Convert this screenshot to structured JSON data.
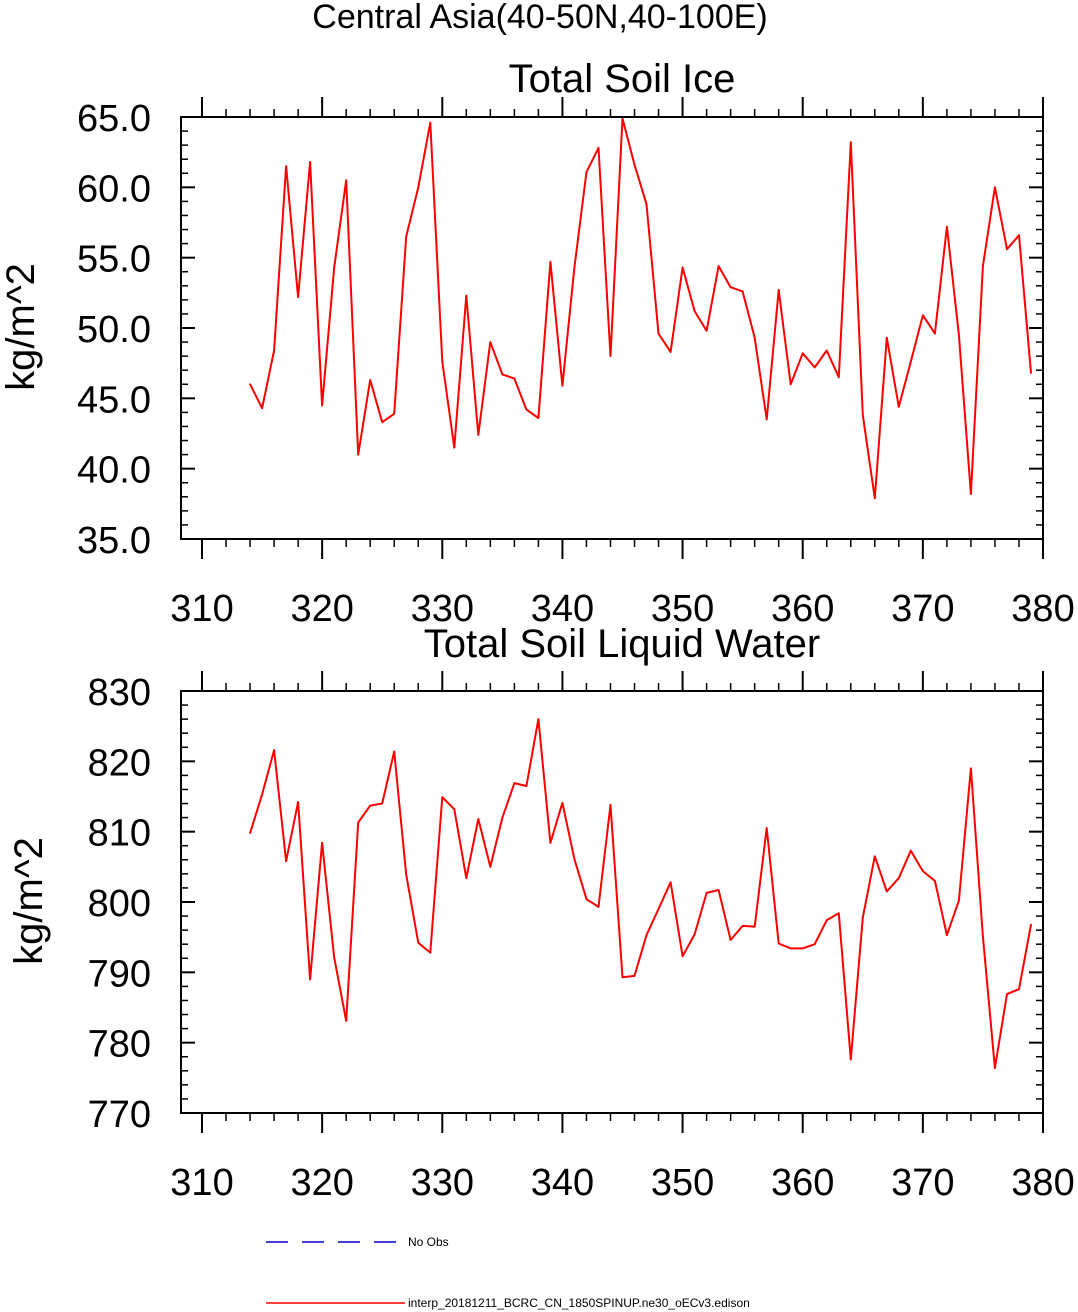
{
  "figure_title": "Central Asia(40-50N,40-100E)",
  "legend": [
    {
      "label": "No Obs",
      "color": "#0000cc",
      "style": "dashed"
    },
    {
      "label": "interp_20181211_BCRC_CN_1850SPINUP.ne30_oECv3.edison",
      "color": "#ff0000",
      "style": "solid"
    }
  ],
  "chart_data": [
    {
      "type": "line",
      "title": "Total Soil Ice",
      "xlabel": "",
      "ylabel": "kg/m^2",
      "xlim": [
        310,
        380
      ],
      "ylim": [
        35,
        65
      ],
      "xticks": [
        310,
        320,
        330,
        340,
        350,
        360,
        370,
        380
      ],
      "xtick_labels": [
        "310",
        "320",
        "330",
        "340",
        "350",
        "360",
        "370",
        "380"
      ],
      "yticks": [
        35,
        40,
        45,
        50,
        55,
        60,
        65
      ],
      "ytick_labels": [
        "35.0",
        "40.0",
        "45.0",
        "50.0",
        "55.0",
        "60.0",
        "65.0"
      ],
      "yminor_step": 1,
      "xminor_step": 2,
      "grid": false,
      "series": [
        {
          "color": "#ff0000",
          "x": [
            314,
            315,
            316,
            317,
            318,
            319,
            320,
            321,
            322,
            323,
            324,
            325,
            326,
            327,
            328,
            329,
            330,
            331,
            332,
            333,
            334,
            335,
            336,
            337,
            338,
            339,
            340,
            341,
            342,
            343,
            344,
            345,
            346,
            347,
            348,
            349,
            350,
            351,
            352,
            353,
            354,
            355,
            356,
            357,
            358,
            359,
            360,
            361,
            362,
            363,
            364,
            365,
            366,
            367,
            368,
            369,
            370,
            371,
            372,
            373,
            374,
            375,
            376,
            377,
            378,
            379
          ],
          "values": [
            46.0,
            44.3,
            48.4,
            61.5,
            52.2,
            61.8,
            44.5,
            54.3,
            60.5,
            41.0,
            46.3,
            43.3,
            43.9,
            56.5,
            60.0,
            64.6,
            47.6,
            41.5,
            52.3,
            42.4,
            49.0,
            46.7,
            46.4,
            44.2,
            43.6,
            54.7,
            45.9,
            54.3,
            61.1,
            62.8,
            48.0,
            64.9,
            61.6,
            58.8,
            49.6,
            48.3,
            54.3,
            51.2,
            49.8,
            54.4,
            52.9,
            52.6,
            49.3,
            43.5,
            52.7,
            46.0,
            48.2,
            47.2,
            48.4,
            46.5,
            63.2,
            43.8,
            37.9,
            49.3,
            44.4,
            47.6,
            50.9,
            49.6,
            57.2,
            49.5,
            38.2,
            54.4,
            60.0,
            55.6,
            56.6,
            46.8
          ]
        }
      ]
    },
    {
      "type": "line",
      "title": "Total Soil Liquid Water",
      "xlabel": "",
      "ylabel": "kg/m^2",
      "xlim": [
        310,
        380
      ],
      "ylim": [
        770,
        830
      ],
      "xticks": [
        310,
        320,
        330,
        340,
        350,
        360,
        370,
        380
      ],
      "xtick_labels": [
        "310",
        "320",
        "330",
        "340",
        "350",
        "360",
        "370",
        "380"
      ],
      "yticks": [
        770,
        780,
        790,
        800,
        810,
        820,
        830
      ],
      "ytick_labels": [
        "770",
        "780",
        "790",
        "800",
        "810",
        "820",
        "830"
      ],
      "yminor_step": 2,
      "xminor_step": 2,
      "grid": false,
      "series": [
        {
          "color": "#ff0000",
          "x": [
            314,
            315,
            316,
            317,
            318,
            319,
            320,
            321,
            322,
            323,
            324,
            325,
            326,
            327,
            328,
            329,
            330,
            331,
            332,
            333,
            334,
            335,
            336,
            337,
            338,
            339,
            340,
            341,
            342,
            343,
            344,
            345,
            346,
            347,
            348,
            349,
            350,
            351,
            352,
            353,
            354,
            355,
            356,
            357,
            358,
            359,
            360,
            361,
            362,
            363,
            364,
            365,
            366,
            367,
            368,
            369,
            370,
            371,
            372,
            373,
            374,
            375,
            376,
            377,
            378,
            379
          ],
          "values": [
            809.8,
            815.3,
            821.6,
            805.8,
            814.2,
            789.0,
            808.4,
            792.1,
            783.1,
            811.3,
            813.7,
            814.0,
            821.4,
            803.9,
            794.2,
            792.8,
            814.9,
            813.2,
            803.4,
            811.8,
            805.0,
            812.0,
            816.9,
            816.5,
            826.0,
            808.4,
            814.1,
            806.1,
            800.4,
            799.3,
            813.8,
            789.3,
            789.5,
            795.3,
            799.0,
            802.8,
            792.3,
            795.4,
            801.3,
            801.7,
            794.6,
            796.6,
            796.5,
            810.5,
            794.1,
            793.4,
            793.4,
            794.0,
            797.4,
            798.4,
            777.6,
            797.8,
            806.5,
            801.5,
            803.4,
            807.3,
            804.4,
            803.0,
            795.3,
            800.2,
            819.0,
            795.1,
            776.4,
            786.9,
            787.6,
            796.8
          ]
        }
      ]
    }
  ]
}
